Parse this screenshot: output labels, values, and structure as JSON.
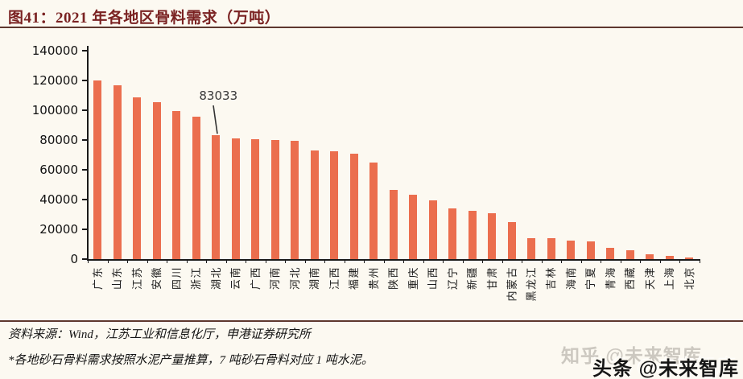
{
  "page": {
    "title": "图41：2021 年各地区骨料需求（万吨）",
    "source_line": "资料来源：Wind，江苏工业和信息化厅，申港证券研究所",
    "footnote": "*各地砂石骨料需求按照水泥产量推算，7 吨砂石骨料对应 1 吨水泥。",
    "watermark_ghost": "知乎 @未来智库",
    "watermark_front": "头条 @未来智库"
  },
  "colors": {
    "bar": "#EB6E4E",
    "title_text": "#7A2222",
    "rule": "#5E372E",
    "background": "#FCF9F1",
    "axis": "#1A1A1A",
    "annotation_text": "#3A3A3A"
  },
  "chart_data": {
    "type": "bar",
    "title": "2021 年各地区骨料需求（万吨）",
    "unit": "万吨",
    "categories": [
      "广东",
      "山东",
      "江苏",
      "安徽",
      "四川",
      "浙江",
      "湖北",
      "云南",
      "广西",
      "河南",
      "河北",
      "湖南",
      "江西",
      "福建",
      "贵州",
      "陕西",
      "重庆",
      "山西",
      "辽宁",
      "新疆",
      "甘肃",
      "内蒙古",
      "黑龙江",
      "吉林",
      "海南",
      "宁夏",
      "青海",
      "西藏",
      "天津",
      "上海",
      "北京"
    ],
    "values": [
      120000,
      116500,
      108500,
      105500,
      99500,
      95600,
      83033,
      80800,
      80300,
      80000,
      79400,
      73000,
      72500,
      70700,
      64600,
      46600,
      43400,
      39400,
      34000,
      32200,
      30800,
      24700,
      14200,
      13900,
      12400,
      12000,
      7400,
      6100,
      3400,
      2000,
      1300
    ],
    "ylim": [
      0,
      140000
    ],
    "yticks": [
      0,
      20000,
      40000,
      60000,
      80000,
      100000,
      120000,
      140000
    ],
    "xlabel": "",
    "ylabel": "",
    "grid": false,
    "legend": "none",
    "bar_color": "#EB6E4E",
    "annotation": {
      "label": "83033",
      "category": "湖北",
      "value": 83033
    }
  }
}
